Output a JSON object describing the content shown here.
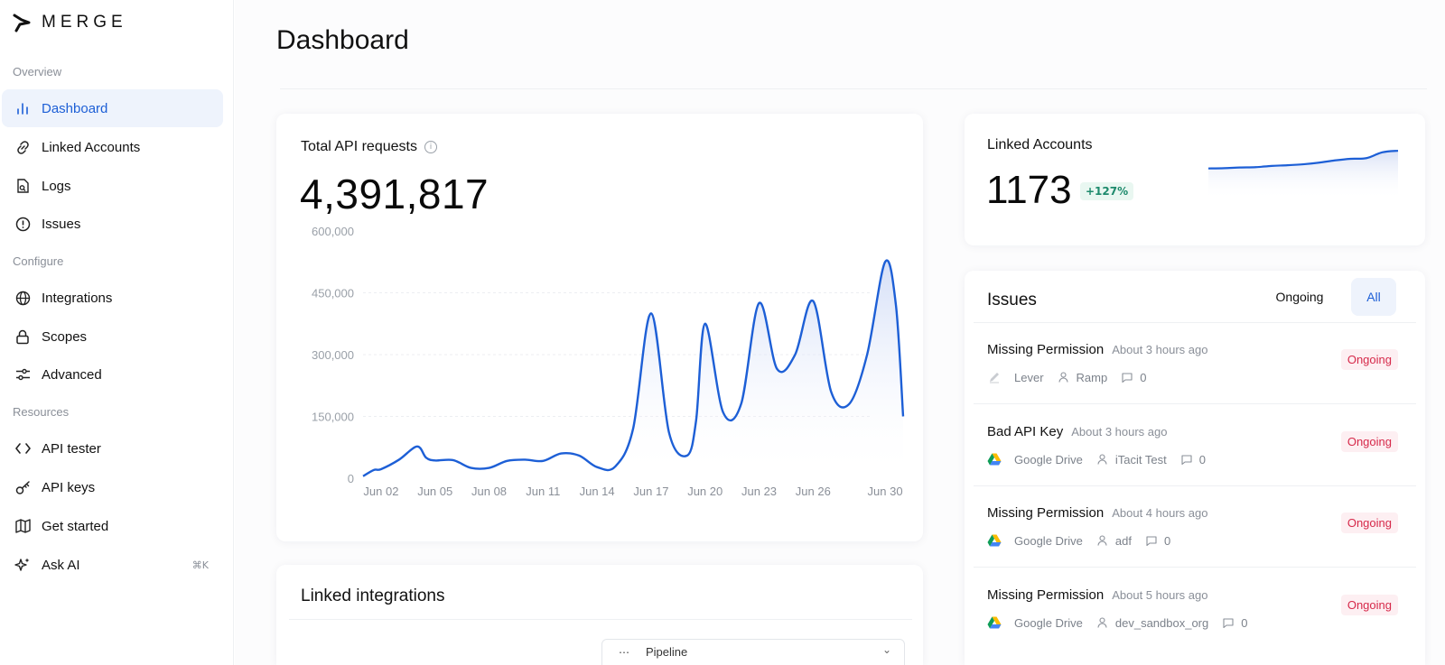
{
  "app": {
    "brand": "MERGE"
  },
  "sidebar": {
    "sections": [
      "Overview",
      "Configure",
      "Resources"
    ],
    "items": [
      {
        "label": "Dashboard",
        "icon": "bar-chart-icon",
        "active": true
      },
      {
        "label": "Linked Accounts",
        "icon": "link-icon"
      },
      {
        "label": "Logs",
        "icon": "file-search-icon"
      },
      {
        "label": "Issues",
        "icon": "alert-circle-icon"
      },
      {
        "label": "Integrations",
        "icon": "globe-icon"
      },
      {
        "label": "Scopes",
        "icon": "lock-icon"
      },
      {
        "label": "Advanced",
        "icon": "sliders-icon"
      },
      {
        "label": "API tester",
        "icon": "code-icon"
      },
      {
        "label": "API keys",
        "icon": "key-icon"
      },
      {
        "label": "Get started",
        "icon": "map-icon"
      },
      {
        "label": "Ask AI",
        "icon": "sparkles-icon",
        "shortcut": "⌘K"
      }
    ]
  },
  "page": {
    "title": "Dashboard"
  },
  "api_card": {
    "title": "Total API requests",
    "total": "4,391,817"
  },
  "chart_data": {
    "type": "line",
    "title": "Total API requests",
    "x_ticks": [
      "Jun 02",
      "Jun 05",
      "Jun 08",
      "Jun 11",
      "Jun 14",
      "Jun 17",
      "Jun 20",
      "Jun 23",
      "Jun 26",
      "Jun 30"
    ],
    "y_ticks": [
      "0",
      "150,000",
      "300,000",
      "450,000",
      "600,000"
    ],
    "ylim": [
      0,
      600000
    ],
    "grid": true,
    "x_day": [
      1,
      1.6,
      2,
      3,
      4,
      4.5,
      5,
      6,
      7,
      8,
      9,
      10,
      11,
      12,
      13,
      14,
      15,
      16,
      17,
      18,
      19,
      19.5,
      20,
      21,
      22,
      23,
      24,
      25,
      26,
      27,
      28,
      29,
      30,
      30.6,
      31
    ],
    "values": [
      5000,
      20000,
      22000,
      45000,
      77000,
      50000,
      43000,
      44000,
      25000,
      25000,
      42000,
      45000,
      42000,
      60000,
      55000,
      27000,
      28000,
      120000,
      400000,
      110000,
      55000,
      140000,
      375000,
      160000,
      180000,
      425000,
      265000,
      300000,
      430000,
      210000,
      180000,
      300000,
      525000,
      420000,
      150000
    ],
    "line_color": "#1d5fd6"
  },
  "linked_accounts": {
    "title": "Linked Accounts",
    "count": "1173",
    "change": "+127%",
    "trend": [
      0.4,
      0.41,
      0.43,
      0.44,
      0.48,
      0.5,
      0.53,
      0.58,
      0.65,
      0.7,
      0.72,
      0.9,
      0.95
    ]
  },
  "issues": {
    "title": "Issues",
    "tabs": [
      "Ongoing",
      "All"
    ],
    "active_tab": "All",
    "list": [
      {
        "name": "Missing Permission",
        "time": "About 3 hours ago",
        "integration": "Lever",
        "integration_icon": "pen-icon",
        "user": "Ramp",
        "comments": "0",
        "status": "Ongoing"
      },
      {
        "name": "Bad API Key",
        "time": "About 3 hours ago",
        "integration": "Google Drive",
        "integration_icon": "google-drive-icon",
        "user": "iTacit Test",
        "comments": "0",
        "status": "Ongoing"
      },
      {
        "name": "Missing Permission",
        "time": "About 4 hours ago",
        "integration": "Google Drive",
        "integration_icon": "google-drive-icon",
        "user": "adf",
        "comments": "0",
        "status": "Ongoing"
      },
      {
        "name": "Missing Permission",
        "time": "About 5 hours ago",
        "integration": "Google Drive",
        "integration_icon": "google-drive-icon",
        "user": "dev_sandbox_org",
        "comments": "0",
        "status": "Ongoing"
      }
    ]
  },
  "linked_integrations": {
    "title": "Linked integrations",
    "select_value": "Pipeline"
  },
  "colors": {
    "accent": "#1d5fd6",
    "active_bg": "#eef3fc",
    "status_red": "#d6294a",
    "positive_green": "#1d8a6c"
  }
}
